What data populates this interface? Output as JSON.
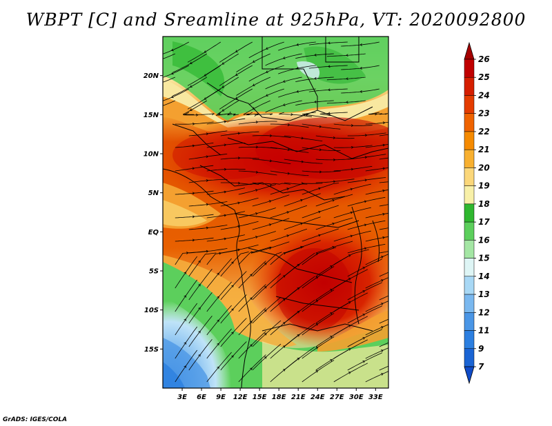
{
  "title": "WBPT [C] and Sreamline at 925hPa, VT: 2020092800",
  "credit": "GrADS: IGES/COLA",
  "map": {
    "lon_range": [
      0,
      35
    ],
    "lat_range": [
      -20,
      25
    ],
    "lat_ticks": [
      "20N",
      "15N",
      "10N",
      "5N",
      "EQ",
      "5S",
      "10S",
      "15S"
    ],
    "lon_ticks": [
      "3E",
      "6E",
      "9E",
      "12E",
      "15E",
      "18E",
      "21E",
      "24E",
      "27E",
      "30E",
      "33E"
    ],
    "field": "WBPT",
    "field_units": "C",
    "overlay": "streamlines",
    "level": "925hPa"
  },
  "colorbar": {
    "levels": [
      "26",
      "25",
      "24",
      "23",
      "22",
      "21",
      "20",
      "19",
      "18",
      "17",
      "16",
      "15",
      "14",
      "13",
      "12",
      "11",
      "9",
      "7"
    ],
    "colors": [
      "#a50000",
      "#c00000",
      "#d51e00",
      "#e43c00",
      "#ef6300",
      "#f58a00",
      "#f8b030",
      "#fbd77a",
      "#f8f0a8",
      "#2fb72f",
      "#5ccf5c",
      "#a4e6a4",
      "#def5f5",
      "#a8d8f5",
      "#7ab8ef",
      "#4a96e6",
      "#2c7fe0",
      "#1a64d4",
      "#0f4bc8"
    ]
  }
}
